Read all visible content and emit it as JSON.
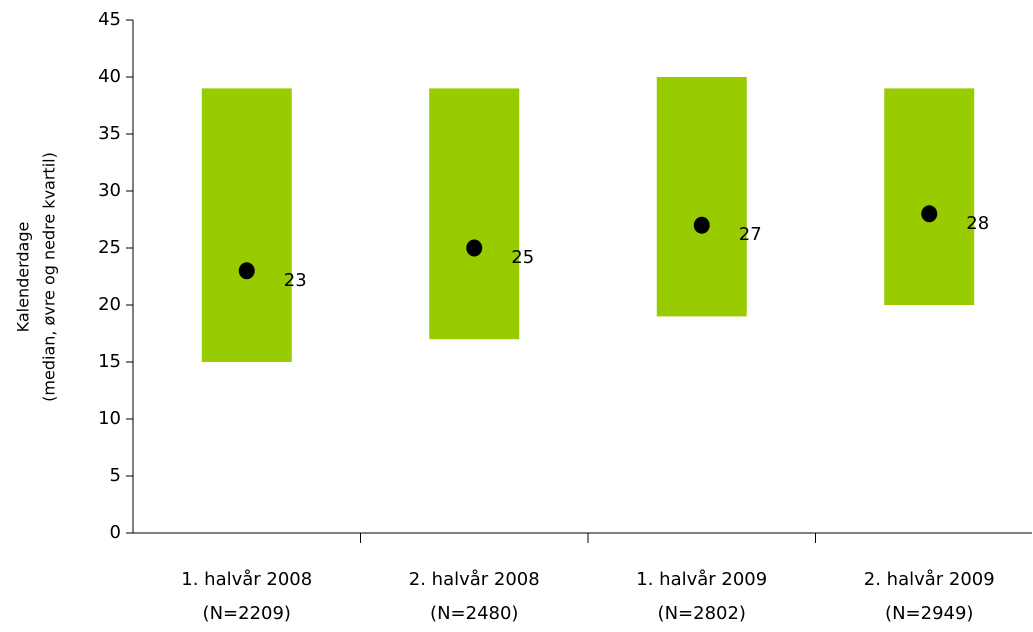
{
  "chart_data": {
    "type": "floating_bar",
    "y_label": [
      "Kalenderdage",
      "(median, øvre og nedre kvartil)"
    ],
    "categories": [
      [
        "1. halvår 2008",
        "(N=2209)"
      ],
      [
        "2. halvår 2008",
        "(N=2480)"
      ],
      [
        "1. halvår 2009",
        "(N=2802)"
      ],
      [
        "2. halvår 2009",
        "(N=2949)"
      ]
    ],
    "lower": [
      15,
      17,
      19,
      20
    ],
    "upper": [
      39,
      39,
      40,
      39
    ],
    "median": [
      23,
      25,
      27,
      28
    ],
    "color": "#99cc00",
    "marker_color": "#000000",
    "ylim": [
      0,
      45
    ],
    "yticks": [
      0,
      5,
      10,
      15,
      20,
      25,
      30,
      35,
      40,
      45
    ],
    "grid": false
  }
}
